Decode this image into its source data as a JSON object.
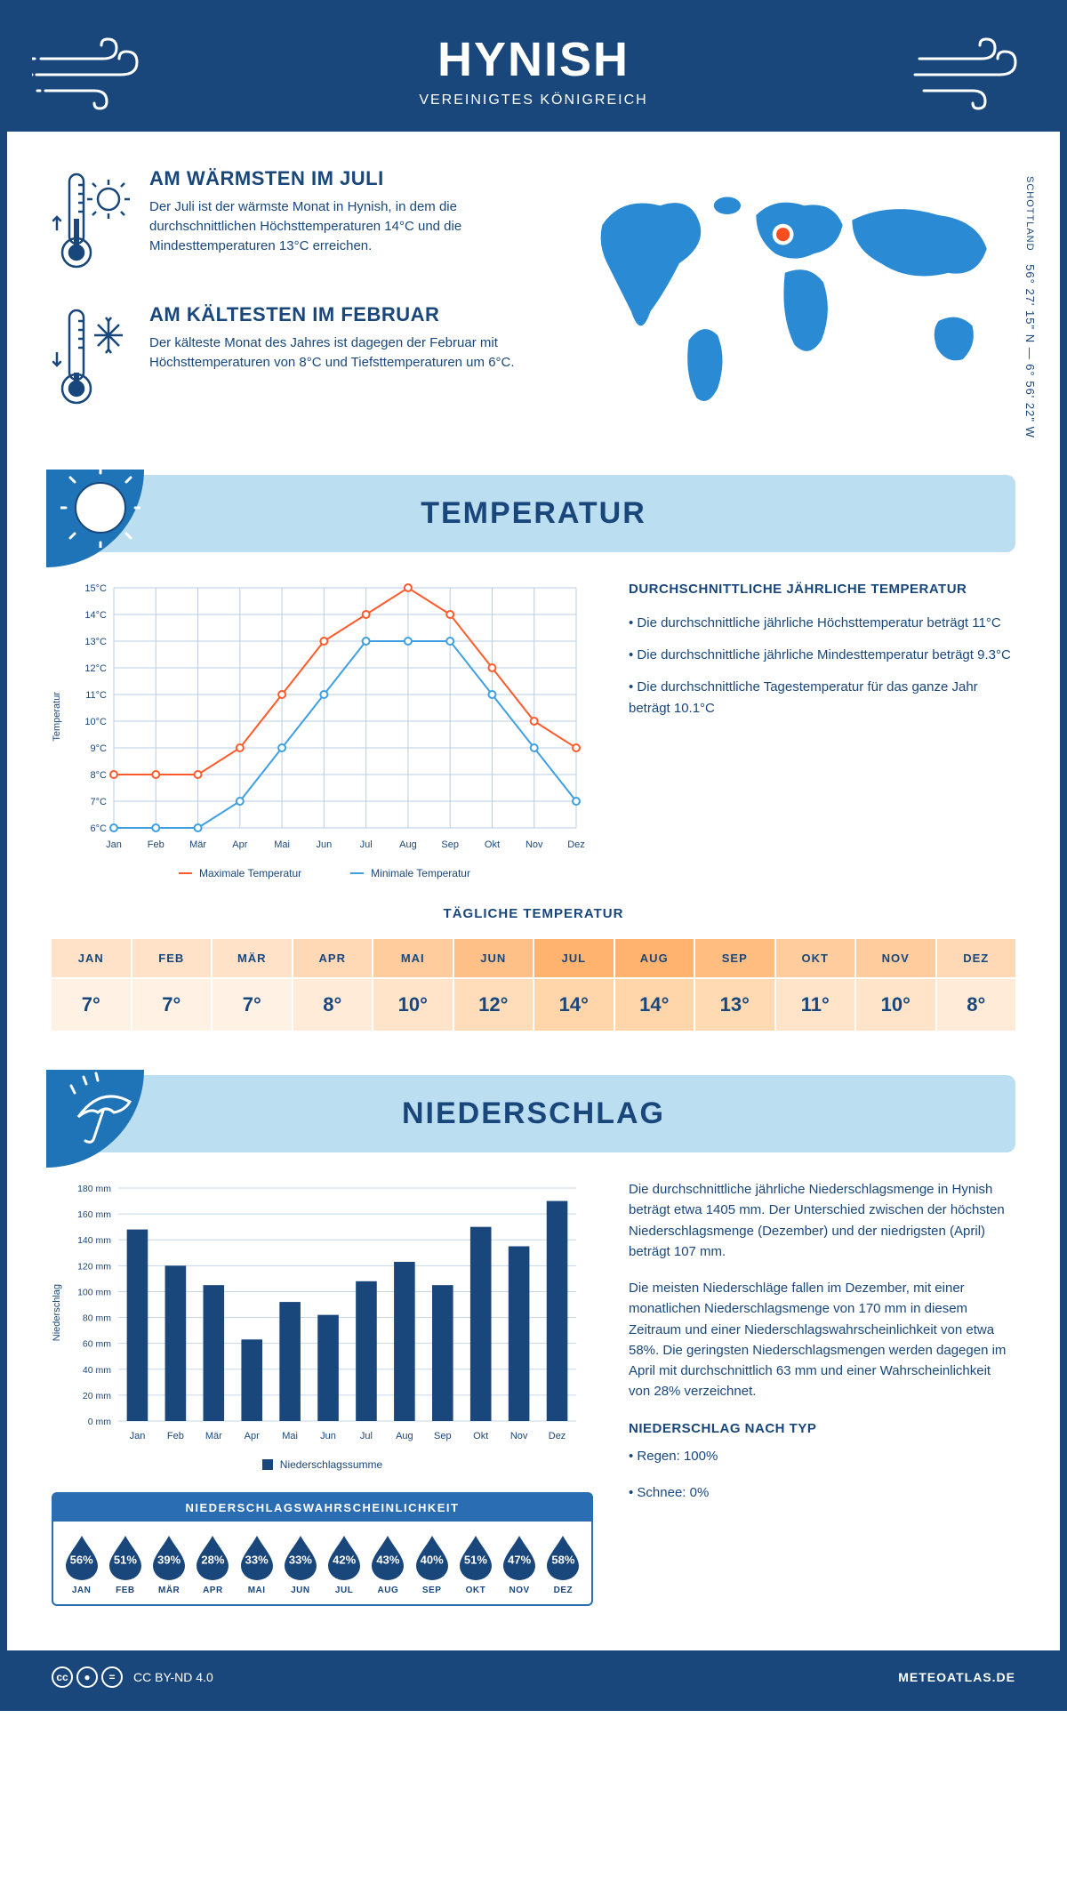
{
  "header": {
    "title": "HYNISH",
    "subtitle": "VEREINIGTES KÖNIGREICH"
  },
  "intro": {
    "warm": {
      "heading": "AM WÄRMSTEN IM JULI",
      "body": "Der Juli ist der wärmste Monat in Hynish, in dem die durchschnittlichen Höchsttemperaturen 14°C und die Mindesttemperaturen 13°C erreichen."
    },
    "cold": {
      "heading": "AM KÄLTESTEN IM FEBRUAR",
      "body": "Der kälteste Monat des Jahres ist dagegen der Februar mit Höchsttemperaturen von 8°C und Tiefsttemperaturen um 6°C."
    },
    "coords_line": "56° 27' 15\" N — 6° 56' 22\" W",
    "region": "SCHOTTLAND",
    "marker_color": "#ff4d1f",
    "map_color": "#2a8bd4"
  },
  "temperature": {
    "banner_title": "TEMPERATUR",
    "chart": {
      "type": "line",
      "y_label": "Temperatur",
      "months": [
        "Jan",
        "Feb",
        "Mär",
        "Apr",
        "Mai",
        "Jun",
        "Jul",
        "Aug",
        "Sep",
        "Okt",
        "Nov",
        "Dez"
      ],
      "max_series": [
        8,
        8,
        8,
        9,
        11,
        13,
        14,
        15,
        14,
        12,
        10,
        9
      ],
      "min_series": [
        6,
        6,
        6,
        7,
        9,
        11,
        13,
        13,
        13,
        11,
        9,
        7
      ],
      "y_ticks": [
        "6°C",
        "7°C",
        "8°C",
        "9°C",
        "10°C",
        "11°C",
        "12°C",
        "13°C",
        "14°C",
        "15°C"
      ],
      "ylim": [
        6,
        15
      ],
      "max_color": "#ff5a2c",
      "min_color": "#3ea0e2",
      "grid_color": "#b9cde1",
      "legend_max": "Maximale Temperatur",
      "legend_min": "Minimale Temperatur",
      "line_width": 2,
      "marker": "circle"
    },
    "annual": {
      "heading": "DURCHSCHNITTLICHE JÄHRLICHE TEMPERATUR",
      "b1": "• Die durchschnittliche jährliche Höchsttemperatur beträgt 11°C",
      "b2": "• Die durchschnittliche jährliche Mindesttemperatur beträgt 9.3°C",
      "b3": "• Die durchschnittliche Tagestemperatur für das ganze Jahr beträgt 10.1°C"
    },
    "daily": {
      "heading": "TÄGLICHE TEMPERATUR",
      "months": [
        "JAN",
        "FEB",
        "MÄR",
        "APR",
        "MAI",
        "JUN",
        "JUL",
        "AUG",
        "SEP",
        "OKT",
        "NOV",
        "DEZ"
      ],
      "values": [
        "7°",
        "7°",
        "7°",
        "8°",
        "10°",
        "12°",
        "14°",
        "14°",
        "13°",
        "11°",
        "10°",
        "8°"
      ],
      "hdr_colors": [
        "#ffe2c7",
        "#ffe2c7",
        "#ffe2c7",
        "#ffd8b5",
        "#ffcc9d",
        "#ffc088",
        "#ffb36f",
        "#ffb36f",
        "#ffbd80",
        "#ffcc9d",
        "#ffcc9d",
        "#ffd8b5"
      ],
      "val_colors": [
        "#fff1e4",
        "#fff1e4",
        "#fff1e4",
        "#ffebd8",
        "#ffe4ca",
        "#ffddba",
        "#ffd5a9",
        "#ffd5a9",
        "#ffdab2",
        "#ffe4ca",
        "#ffe4ca",
        "#ffebd8"
      ]
    }
  },
  "precipitation": {
    "banner_title": "NIEDERSCHLAG",
    "chart": {
      "type": "bar",
      "y_label": "Niederschlag",
      "months": [
        "Jan",
        "Feb",
        "Mär",
        "Apr",
        "Mai",
        "Jun",
        "Jul",
        "Aug",
        "Sep",
        "Okt",
        "Nov",
        "Dez"
      ],
      "values": [
        148,
        120,
        105,
        63,
        92,
        82,
        108,
        123,
        105,
        150,
        135,
        170
      ],
      "y_ticks": [
        "0 mm",
        "20 mm",
        "40 mm",
        "60 mm",
        "80 mm",
        "100 mm",
        "120 mm",
        "140 mm",
        "160 mm",
        "180 mm"
      ],
      "ylim": [
        0,
        180
      ],
      "bar_color": "#19477b",
      "grid_color": "#c7d7e6",
      "bar_width": 0.55,
      "legend_label": "Niederschlagssumme"
    },
    "text": {
      "p1": "Die durchschnittliche jährliche Niederschlagsmenge in Hynish beträgt etwa 1405 mm. Der Unterschied zwischen der höchsten Niederschlagsmenge (Dezember) und der niedrigsten (April) beträgt 107 mm.",
      "p2": "Die meisten Niederschläge fallen im Dezember, mit einer monatlichen Niederschlagsmenge von 170 mm in diesem Zeitraum und einer Niederschlagswahrscheinlichkeit von etwa 58%. Die geringsten Niederschlagsmengen werden dagegen im April mit durchschnittlich 63 mm und einer Wahrscheinlichkeit von 28% verzeichnet.",
      "type_heading": "NIEDERSCHLAG NACH TYP",
      "type_rain": "• Regen: 100%",
      "type_snow": "• Schnee: 0%"
    },
    "probability": {
      "heading": "NIEDERSCHLAGSWAHRSCHEINLICHKEIT",
      "months": [
        "JAN",
        "FEB",
        "MÄR",
        "APR",
        "MAI",
        "JUN",
        "JUL",
        "AUG",
        "SEP",
        "OKT",
        "NOV",
        "DEZ"
      ],
      "values": [
        "56%",
        "51%",
        "39%",
        "28%",
        "33%",
        "33%",
        "42%",
        "43%",
        "40%",
        "51%",
        "47%",
        "58%"
      ],
      "drop_color": "#19477b"
    }
  },
  "footer": {
    "license": "CC BY-ND 4.0",
    "site": "METEOATLAS.DE"
  },
  "palette": {
    "brand_dark": "#19477b",
    "banner_bg": "#bcdef1",
    "banner_corner": "#1f73b7"
  }
}
